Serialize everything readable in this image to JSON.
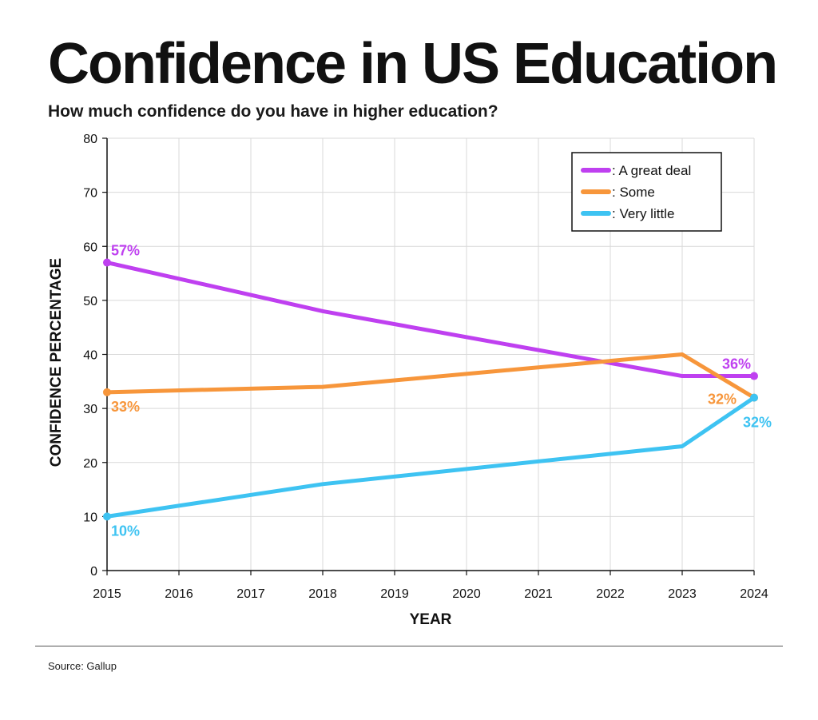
{
  "title": "Confidence in US Education",
  "subtitle": "How much confidence do you have in higher education?",
  "source": "Source: Gallup",
  "chart_data": {
    "type": "line",
    "xlabel": "YEAR",
    "ylabel": "CONFIDENCE PERCENTAGE",
    "x_ticks": [
      2015,
      2016,
      2017,
      2018,
      2019,
      2020,
      2021,
      2022,
      2023,
      2024
    ],
    "xlim": [
      2015,
      2024
    ],
    "ylim": [
      0,
      80
    ],
    "y_ticks": [
      0,
      10,
      20,
      30,
      40,
      50,
      60,
      70,
      80
    ],
    "grid": true,
    "legend_position": "top-right",
    "series": [
      {
        "name": ": A great deal",
        "color": "#bf40f0",
        "points": [
          [
            2015,
            57
          ],
          [
            2018,
            48
          ],
          [
            2023,
            36
          ],
          [
            2024,
            36
          ]
        ],
        "labels": [
          {
            "x": 2015,
            "y": 57,
            "text": "57%"
          },
          {
            "x": 2024,
            "y": 36,
            "text": "36%"
          }
        ]
      },
      {
        "name": ": Some",
        "color": "#f7963b",
        "points": [
          [
            2015,
            33
          ],
          [
            2018,
            34
          ],
          [
            2023,
            40
          ],
          [
            2024,
            32
          ]
        ],
        "labels": [
          {
            "x": 2015,
            "y": 33,
            "text": "33%"
          },
          {
            "x": 2024,
            "y": 32,
            "text": "32%"
          }
        ]
      },
      {
        "name": ": Very little",
        "color": "#3ec3f2",
        "points": [
          [
            2015,
            10
          ],
          [
            2018,
            16
          ],
          [
            2023,
            23
          ],
          [
            2024,
            32
          ]
        ],
        "labels": [
          {
            "x": 2015,
            "y": 10,
            "text": "10%"
          },
          {
            "x": 2024,
            "y": 32,
            "text": "32%"
          }
        ]
      }
    ]
  }
}
